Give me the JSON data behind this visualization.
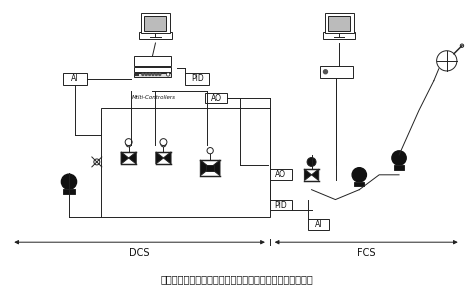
{
  "bg_color": "#ffffff",
  "title": "现场总线控制系统与传统控制系统的比较机控制设计加油站",
  "title_fontsize": 7,
  "dcs_label": "DCS",
  "fcs_label": "FCS",
  "ai_label": "AI",
  "ao_label": "AO",
  "pid_label": "PID",
  "mc_label": "Mtlti-Controllers"
}
